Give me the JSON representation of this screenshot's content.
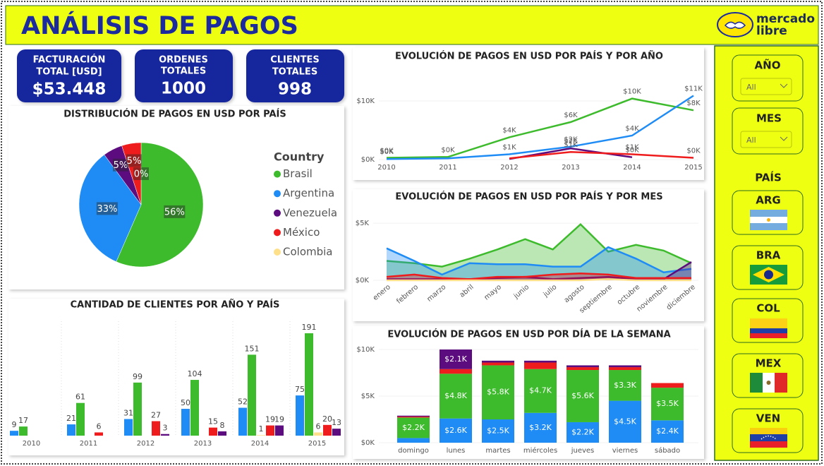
{
  "header": {
    "title": "ANÁLISIS DE PAGOS",
    "logo": [
      "mercado",
      "libre"
    ]
  },
  "kpis": [
    {
      "label": [
        "FACTURACIÓN",
        "TOTAL [USD]"
      ],
      "value": "$53.448"
    },
    {
      "label": [
        "ORDENES",
        "TOTALES"
      ],
      "value": "1000"
    },
    {
      "label": [
        "CLIENTES",
        "TOTALES"
      ],
      "value": "998"
    }
  ],
  "filters": {
    "year": {
      "label": "AÑO",
      "selection": "All"
    },
    "month": {
      "label": "MES",
      "selection": "All"
    },
    "country": {
      "label": "PAÍS",
      "options": [
        "ARG",
        "BRA",
        "COL",
        "MEX",
        "VEN"
      ]
    }
  },
  "chart_data": [
    {
      "type": "pie",
      "title": "DISTRIBUCIÓN DE PAGOS EN USD POR PAÍS",
      "legend_title": "Country",
      "categories": [
        "Brasil",
        "Argentina",
        "Venezuela",
        "México",
        "Colombia"
      ],
      "values": [
        56,
        33,
        5,
        5,
        0
      ],
      "value_labels": [
        "56%",
        "33%",
        "5%",
        "5%",
        "0%"
      ],
      "colors": [
        "#3dbb2c",
        "#1f8cf5",
        "#5c0c7e",
        "#ee1c1c",
        "#ffe08a"
      ]
    },
    {
      "type": "bar",
      "stacked": false,
      "title": "CANTIDAD DE CLIENTES POR AÑO Y PAÍS",
      "categories": [
        "2010",
        "2011",
        "2012",
        "2013",
        "2014",
        "2015"
      ],
      "series": [
        {
          "color": "#1f8cf5",
          "values": [
            9,
            21,
            31,
            50,
            52,
            75
          ]
        },
        {
          "color": "#3dbb2c",
          "values": [
            17,
            61,
            99,
            104,
            151,
            191
          ]
        },
        {
          "color": "#ffe08a",
          "values": [
            null,
            null,
            null,
            null,
            1,
            6
          ]
        },
        {
          "color": "#ee1c1c",
          "values": [
            null,
            6,
            27,
            15,
            19,
            20
          ]
        },
        {
          "color": "#5c0c7e",
          "values": [
            null,
            null,
            3,
            8,
            19,
            13
          ]
        }
      ]
    },
    {
      "type": "line",
      "title": "EVOLUCIÓN DE PAGOS EN USD POR PAÍS Y POR AÑO",
      "categories": [
        "2010",
        "2011",
        "2012",
        "2013",
        "2014",
        "2015"
      ],
      "ylim": [
        0,
        11500
      ],
      "yticks": [
        {
          "value": 0,
          "label": "$0K"
        },
        {
          "value": 10000,
          "label": "$10K"
        }
      ],
      "series": [
        {
          "color": "#3dbb2c",
          "values": [
            300,
            450,
            3800,
            6400,
            10400,
            8400
          ],
          "value_labels": [
            "$0K",
            "$0K",
            "$4K",
            "$6K",
            "$10K",
            "$8K"
          ]
        },
        {
          "color": "#1f8cf5",
          "values": [
            100,
            200,
            900,
            2200,
            4100,
            10900
          ],
          "value_labels": [
            "$0K",
            null,
            "$1K",
            "$2K",
            "$4K",
            "$11K"
          ]
        },
        {
          "color": "#5c0c7e",
          "values": [
            null,
            null,
            100,
            1900,
            400,
            null
          ],
          "value_labels": [
            null,
            null,
            null,
            "$2K",
            "$0K",
            null
          ]
        },
        {
          "color": "#ee1c1c",
          "values": [
            null,
            null,
            200,
            1300,
            900,
            300
          ],
          "value_labels": [
            null,
            null,
            null,
            "$1K",
            "$1K",
            "$0K"
          ]
        }
      ]
    },
    {
      "type": "area",
      "title": "EVOLUCIÓN DE PAGOS EN USD POR PAÍS Y POR MES",
      "categories": [
        "enero",
        "febrero",
        "marzo",
        "abril",
        "mayo",
        "junio",
        "julio",
        "agosto",
        "septiembre",
        "octubre",
        "noviembre",
        "diciembre"
      ],
      "ylim": [
        0,
        5500
      ],
      "yticks": [
        {
          "value": 0,
          "label": "$0K"
        },
        {
          "value": 5000,
          "label": "$5K"
        }
      ],
      "series": [
        {
          "color": "#3dbb2c",
          "values": [
            1700,
            1500,
            1200,
            1900,
            2700,
            3600,
            2700,
            4900,
            2500,
            3100,
            2600,
            1500
          ]
        },
        {
          "color": "#1f8cf5",
          "values": [
            2800,
            1700,
            500,
            1500,
            1400,
            1400,
            1200,
            1200,
            2900,
            1900,
            700,
            1000
          ]
        },
        {
          "color": "#5c0c7e",
          "values": [
            100,
            100,
            100,
            100,
            200,
            300,
            100,
            200,
            300,
            100,
            100,
            1600
          ]
        },
        {
          "color": "#ee1c1c",
          "values": [
            300,
            500,
            200,
            100,
            300,
            300,
            500,
            600,
            500,
            200,
            200,
            200
          ]
        },
        {
          "color": "#ffe08a",
          "values": [
            0,
            0,
            0,
            0,
            0,
            0,
            0,
            0,
            100,
            0,
            0,
            0
          ]
        }
      ]
    },
    {
      "type": "bar",
      "stacked": true,
      "title": "EVOLUCIÓN DE PAGOS EN USD POR DÍA DE LA SEMANA",
      "categories": [
        "domingo",
        "lunes",
        "martes",
        "miércoles",
        "jueves",
        "viernes",
        "sábado"
      ],
      "ylim": [
        0,
        10500
      ],
      "yticks": [
        {
          "value": 0,
          "label": "$0K"
        },
        {
          "value": 5000,
          "label": "$5K"
        },
        {
          "value": 10000,
          "label": "$10K"
        }
      ],
      "series": [
        {
          "color": "#1f8cf5",
          "values": [
            500,
            2600,
            2500,
            3200,
            2200,
            4500,
            2400
          ],
          "value_labels": [
            null,
            "$2.6K",
            "$2.5K",
            "$3.2K",
            "$2.2K",
            "$4.5K",
            "$2.4K"
          ]
        },
        {
          "color": "#3dbb2c",
          "values": [
            2200,
            4800,
            5800,
            4700,
            5600,
            3300,
            3500
          ],
          "value_labels": [
            "$2.2K",
            "$4.8K",
            "$5.8K",
            "$4.7K",
            "$5.6K",
            "$3.3K",
            "$3.5K"
          ]
        },
        {
          "color": "#ee1c1c",
          "values": [
            100,
            500,
            300,
            700,
            300,
            300,
            500
          ]
        },
        {
          "color": "#5c0c7e",
          "values": [
            100,
            2100,
            200,
            200,
            200,
            200,
            null
          ],
          "value_labels": [
            null,
            "$2.1K",
            null,
            null,
            null,
            null,
            null
          ]
        }
      ]
    }
  ]
}
